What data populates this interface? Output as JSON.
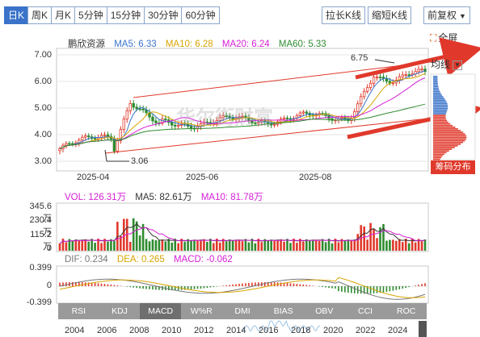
{
  "toolbar": {
    "tabs": [
      "日K",
      "周K",
      "月K",
      "5分钟",
      "15分钟",
      "30分钟",
      "60分钟"
    ],
    "active_tab": "日K",
    "stretch_label": "拉长K线",
    "shorten_label": "缩短K线",
    "adjust_label": "前复权",
    "fullscreen_label": "全屏"
  },
  "price_panel": {
    "stock_name": "鹏欣资源",
    "ma5": "MA5: 6.33",
    "ma10": "MA10: 6.28",
    "ma20": "MA20: 6.24",
    "ma60": "MA60: 5.33",
    "y_ticks": [
      "7.00",
      "6.00",
      "5.00",
      "4.00",
      "3.00"
    ],
    "x_ticks": [
      "2025-04",
      "2025-06",
      "2025-08"
    ],
    "high_marker": "6.75",
    "low_marker": "3.06",
    "avg_line_label": "均线",
    "chip_dist_label": "筹码分布",
    "watermark": "华尔街财富",
    "colors": {
      "ma5": "#3a73c9",
      "ma10": "#d9a400",
      "ma20": "#d61fd6",
      "ma60": "#2e8b2e",
      "up": "#e0392b",
      "down": "#2e8b2e"
    }
  },
  "volume_panel": {
    "vol": "VOL: 126.31万",
    "ma5": "MA5: 82.61万",
    "ma10": "MA10: 81.78万",
    "y_ticks": [
      "345.6万",
      "230.4万",
      "115.2万",
      "0"
    ]
  },
  "macd_panel": {
    "dif": "DIF: 0.234",
    "dea": "DEA: 0.265",
    "macd": "MACD: -0.062",
    "y_ticks": [
      "0.399",
      "0",
      "-0.399"
    ]
  },
  "indicator_tabs": [
    "RSI",
    "KDJ",
    "MACD",
    "W%R",
    "DMI",
    "BIAS",
    "OBV",
    "CCI",
    "ROC"
  ],
  "active_indicator": "MACD",
  "timeline_years": [
    "2004",
    "2006",
    "2008",
    "2010",
    "2012",
    "2014",
    "2016",
    "2018",
    "2020",
    "2022",
    "2024"
  ]
}
